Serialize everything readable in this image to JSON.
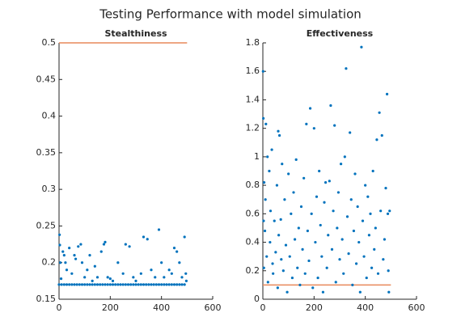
{
  "title": "Testing Performance with model simulation",
  "chart_data": [
    {
      "type": "scatter",
      "title": "Stealthiness",
      "xlim": [
        0,
        600
      ],
      "xticks": [
        0,
        200,
        400,
        600
      ],
      "ylim": [
        0.15,
        0.5
      ],
      "yticks": [
        0.15,
        0.2,
        0.25,
        0.3,
        0.35,
        0.4,
        0.45,
        0.5
      ],
      "reference": {
        "y": 0.5,
        "x": [
          0,
          500
        ],
        "color": "#e8895a"
      },
      "series": [
        {
          "color": "#0072bd",
          "x": [
            0,
            10,
            20,
            30,
            40,
            50,
            60,
            70,
            80,
            90,
            100,
            110,
            120,
            130,
            140,
            150,
            160,
            170,
            180,
            190,
            200,
            210,
            220,
            230,
            240,
            250,
            260,
            270,
            280,
            290,
            300,
            310,
            320,
            330,
            340,
            350,
            360,
            370,
            380,
            390,
            400,
            410,
            420,
            430,
            440,
            450,
            460,
            470,
            480,
            490,
            2,
            3,
            5,
            8,
            15,
            20,
            25,
            30,
            40,
            50,
            60,
            65,
            75,
            85,
            90,
            100,
            110,
            120,
            130,
            140,
            150,
            165,
            175,
            180,
            190,
            200,
            210,
            230,
            250,
            260,
            275,
            290,
            300,
            320,
            330,
            345,
            360,
            375,
            390,
            400,
            410,
            430,
            440,
            450,
            460,
            470,
            480,
            490,
            495,
            497
          ],
          "values": [
            0.17,
            0.17,
            0.17,
            0.17,
            0.17,
            0.17,
            0.17,
            0.17,
            0.17,
            0.17,
            0.17,
            0.17,
            0.17,
            0.17,
            0.17,
            0.17,
            0.17,
            0.17,
            0.17,
            0.17,
            0.17,
            0.17,
            0.17,
            0.17,
            0.17,
            0.17,
            0.17,
            0.17,
            0.17,
            0.17,
            0.17,
            0.17,
            0.17,
            0.17,
            0.17,
            0.17,
            0.17,
            0.17,
            0.17,
            0.17,
            0.17,
            0.17,
            0.17,
            0.17,
            0.17,
            0.17,
            0.17,
            0.17,
            0.17,
            0.17,
            0.238,
            0.224,
            0.2,
            0.178,
            0.215,
            0.21,
            0.2,
            0.19,
            0.22,
            0.185,
            0.21,
            0.205,
            0.222,
            0.225,
            0.2,
            0.18,
            0.19,
            0.21,
            0.175,
            0.195,
            0.18,
            0.215,
            0.225,
            0.228,
            0.18,
            0.178,
            0.175,
            0.2,
            0.185,
            0.225,
            0.222,
            0.18,
            0.175,
            0.185,
            0.235,
            0.232,
            0.19,
            0.18,
            0.245,
            0.2,
            0.18,
            0.19,
            0.185,
            0.22,
            0.215,
            0.2,
            0.18,
            0.235,
            0.185,
            0.175
          ]
        }
      ]
    },
    {
      "type": "scatter",
      "title": "Effectiveness",
      "xlim": [
        0,
        600
      ],
      "xticks": [
        0,
        200,
        400,
        600
      ],
      "ylim": [
        0,
        1.8
      ],
      "yticks": [
        0,
        0.2,
        0.4,
        0.6,
        0.8,
        1,
        1.2,
        1.4,
        1.6,
        1.8
      ],
      "reference": {
        "y": 0.1,
        "x": [
          0,
          500
        ],
        "color": "#e8895a"
      },
      "series": [
        {
          "color": "#0072bd",
          "x": [
            1,
            2,
            3,
            4,
            5,
            8,
            10,
            12,
            15,
            18,
            20,
            25,
            28,
            30,
            35,
            38,
            40,
            45,
            50,
            55,
            58,
            60,
            62,
            65,
            70,
            72,
            75,
            80,
            85,
            90,
            95,
            100,
            105,
            110,
            115,
            120,
            125,
            130,
            135,
            140,
            145,
            150,
            155,
            160,
            165,
            170,
            175,
            180,
            185,
            190,
            195,
            200,
            205,
            210,
            215,
            220,
            225,
            230,
            235,
            240,
            245,
            250,
            255,
            260,
            265,
            270,
            275,
            280,
            285,
            290,
            295,
            300,
            305,
            310,
            315,
            320,
            325,
            330,
            335,
            340,
            345,
            350,
            355,
            360,
            365,
            370,
            375,
            380,
            385,
            390,
            395,
            400,
            405,
            410,
            415,
            420,
            425,
            430,
            435,
            440,
            445,
            450,
            455,
            460,
            465,
            470,
            475,
            480,
            485,
            488,
            490,
            492,
            495
          ],
          "values": [
            1.6,
            1.27,
            0.55,
            0.22,
            0.82,
            0.48,
            0.7,
            1.23,
            0.3,
            1.0,
            0.12,
            0.9,
            0.4,
            0.62,
            1.05,
            0.25,
            0.18,
            0.55,
            0.33,
            0.8,
            0.08,
            1.18,
            0.45,
            1.15,
            0.56,
            0.28,
            0.95,
            0.2,
            0.7,
            0.38,
            0.05,
            0.88,
            0.3,
            0.6,
            0.15,
            0.75,
            0.42,
            0.98,
            0.22,
            0.5,
            0.1,
            0.65,
            0.35,
            0.85,
            0.18,
            1.23,
            0.48,
            0.27,
            1.34,
            0.6,
            0.08,
            1.2,
            0.4,
            0.72,
            0.15,
            0.9,
            0.52,
            0.3,
            0.05,
            0.68,
            0.82,
            0.22,
            0.45,
            0.83,
            1.36,
            0.35,
            0.62,
            1.22,
            0.12,
            0.5,
            0.75,
            0.28,
            0.95,
            0.42,
            0.18,
            1.0,
            1.62,
            0.58,
            0.32,
            1.17,
            0.7,
            0.1,
            0.48,
            0.88,
            0.25,
            0.65,
            0.4,
            0.05,
            1.77,
            0.55,
            0.3,
            0.8,
            0.15,
            0.72,
            0.45,
            0.6,
            0.22,
            0.9,
            0.35,
            0.5,
            1.12,
            0.18,
            1.31,
            0.62,
            1.15,
            0.28,
            0.42,
            0.78,
            1.44,
            0.6,
            0.2,
            0.05,
            0.62
          ]
        }
      ]
    }
  ]
}
